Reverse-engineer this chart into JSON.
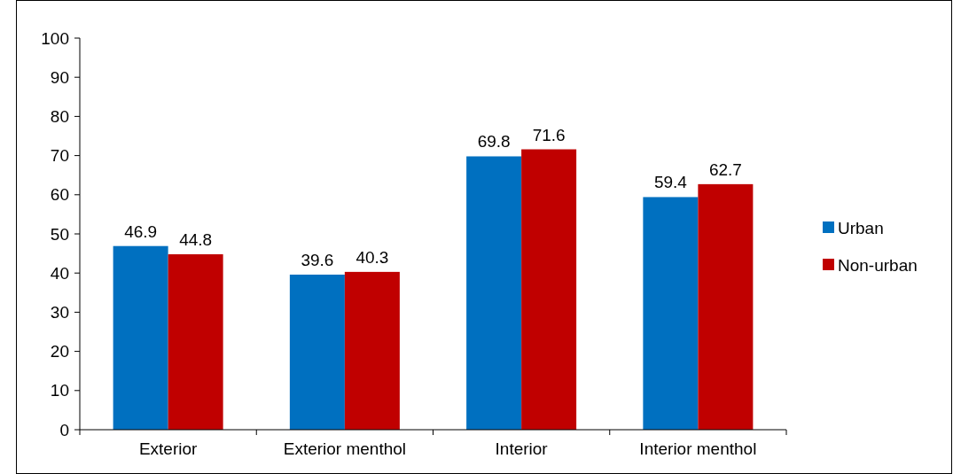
{
  "chart_data": {
    "type": "bar",
    "categories": [
      "Exterior",
      "Exterior menthol",
      "Interior",
      "Interior menthol"
    ],
    "series": [
      {
        "name": "Urban",
        "color": "#0070c0",
        "values": [
          46.9,
          39.6,
          69.8,
          59.4
        ]
      },
      {
        "name": "Non-urban",
        "color": "#c00000",
        "values": [
          44.8,
          40.3,
          71.6,
          62.7
        ]
      }
    ],
    "ylim": [
      0,
      100
    ],
    "yticks": [
      0,
      10,
      20,
      30,
      40,
      50,
      60,
      70,
      80,
      90,
      100
    ],
    "data_labels": true,
    "legend": "right",
    "grid": false
  }
}
